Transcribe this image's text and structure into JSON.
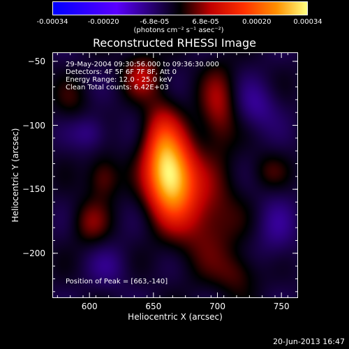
{
  "colorbar": {
    "ticks": [
      "-0.00034",
      "-0.00020",
      "-6.8e-05",
      "6.8e-05",
      "0.00020",
      "0.00034"
    ],
    "unit": "(photons cm⁻² s⁻¹ asec⁻²)"
  },
  "annotation": {
    "time": "29-May-2004 09:30:56.000 to 09:36:30.000",
    "detectors": "Detectors: 4F 5F 6F 7F 8F, Att 0",
    "energy": "Energy Range: 12.0 - 25.0 keV",
    "clean": "Clean     Total counts: 6.42E+03",
    "peak": "Position of Peak = [663,-140]"
  },
  "date_stamp": "20-Jun-2013 16:47",
  "chart_data": {
    "type": "heatmap",
    "title": "Reconstructed RHESSI Image",
    "xlabel": "Heliocentric X (arcsec)",
    "ylabel": "Heliocentric Y (arcsec)",
    "xlim": [
      571,
      763
    ],
    "ylim": [
      -235,
      -43
    ],
    "xticks": [
      600,
      650,
      700,
      750
    ],
    "yticks": [
      -50,
      -100,
      -150,
      -200
    ],
    "zlim": [
      -0.00034,
      0.00034
    ],
    "peak": {
      "x": 663,
      "y": -140
    },
    "sources": [
      {
        "x": 663,
        "y": -140,
        "sx": 13,
        "sy": 22,
        "amp": 1.0
      },
      {
        "x": 655,
        "y": -110,
        "sx": 10,
        "sy": 22,
        "amp": 0.35
      },
      {
        "x": 640,
        "y": -60,
        "sx": 10,
        "sy": 12,
        "amp": 0.3
      },
      {
        "x": 700,
        "y": -85,
        "sx": 10,
        "sy": 22,
        "amp": 0.3
      },
      {
        "x": 690,
        "y": -170,
        "sx": 18,
        "sy": 28,
        "amp": 0.28
      },
      {
        "x": 610,
        "y": -140,
        "sx": 9,
        "sy": 12,
        "amp": 0.25
      },
      {
        "x": 600,
        "y": -175,
        "sx": 10,
        "sy": 12,
        "amp": 0.22
      },
      {
        "x": 715,
        "y": -215,
        "sx": 12,
        "sy": 12,
        "amp": 0.18
      },
      {
        "x": 740,
        "y": -135,
        "sx": 10,
        "sy": 10,
        "amp": 0.14
      },
      {
        "x": 585,
        "y": -80,
        "sx": 10,
        "sy": 12,
        "amp": 0.12
      },
      {
        "x": 600,
        "y": -105,
        "sx": 10,
        "sy": 10,
        "amp": -0.18
      },
      {
        "x": 730,
        "y": -85,
        "sx": 12,
        "sy": 14,
        "amp": -0.18
      },
      {
        "x": 615,
        "y": -210,
        "sx": 12,
        "sy": 12,
        "amp": -0.12
      },
      {
        "x": 745,
        "y": -180,
        "sx": 12,
        "sy": 20,
        "amp": -0.14
      }
    ]
  }
}
